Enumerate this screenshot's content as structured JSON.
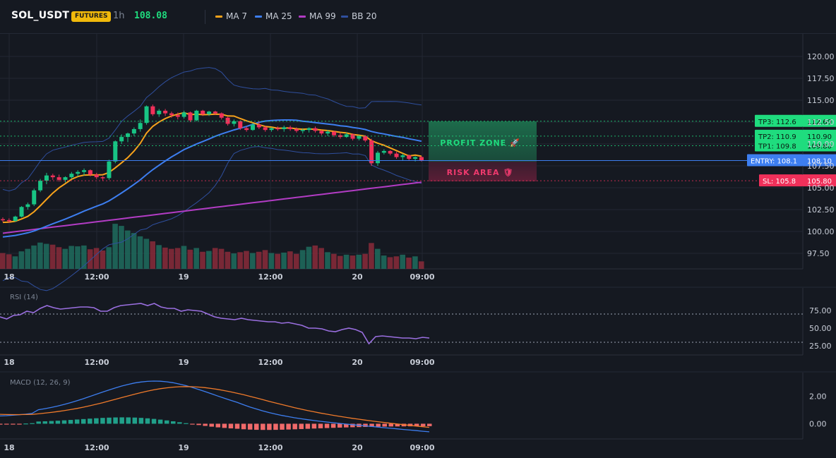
{
  "header": {
    "symbol": "SOL_USDT",
    "badge": "FUTURES",
    "timeframe": "1h",
    "price": "108.08",
    "legend": [
      {
        "label": "MA 7",
        "color": "#f7a21b"
      },
      {
        "label": "MA 25",
        "color": "#3d7ef0"
      },
      {
        "label": "MA 99",
        "color": "#b23cc4"
      },
      {
        "label": "BB 20",
        "color": "#2f4f9e"
      }
    ]
  },
  "colors": {
    "up": "#18c484",
    "down": "#f0305a",
    "bg": "#151921",
    "grid": "#222733",
    "ma7": "#f7a21b",
    "ma25": "#3d7ef0",
    "ma99": "#b23cc4",
    "bb": "#2f4f9e",
    "rsi": "#9a6fe0",
    "macd": "#3d7ef0",
    "signal": "#f07a2a",
    "hist_up": "#21a08a",
    "hist_down": "#f06a6a",
    "tp": "#1fdc7e",
    "entry": "#3d7ef0",
    "sl": "#f0305a"
  },
  "time_labels": [
    "18",
    "12:00",
    "19",
    "12:00",
    "20",
    "09:00"
  ],
  "price_axis": [
    "120.00",
    "117.50",
    "115.00",
    "112.50",
    "110.00",
    "107.50",
    "105.00",
    "102.50",
    "100.00",
    "97.50"
  ],
  "levels": {
    "tp3": {
      "label": "TP3: 112.6",
      "price": "112.60",
      "value": 112.6
    },
    "tp2": {
      "label": "TP2: 110.9",
      "price": "110.90",
      "value": 110.9
    },
    "tp1": {
      "label": "TP1: 109.8",
      "price": "109.80",
      "value": 109.8
    },
    "entry": {
      "label": "ENTRY: 108.1",
      "price": "108.10",
      "value": 108.1
    },
    "sl": {
      "label": "SL: 105.8",
      "price": "105.80",
      "value": 105.8
    }
  },
  "zones": {
    "profit": "PROFIT ZONE 🚀",
    "risk": "RISK AREA 🛡"
  },
  "rsi": {
    "title": "RSI (14)",
    "axis": [
      "75.00",
      "50.00",
      "25.00"
    ],
    "upper": 70,
    "lower": 30,
    "values": [
      66,
      63,
      68,
      69,
      74,
      72,
      78,
      82,
      79,
      77,
      78,
      79,
      80,
      80,
      79,
      74,
      74,
      79,
      82,
      83,
      84,
      85,
      82,
      85,
      80,
      78,
      78,
      74,
      76,
      75,
      74,
      70,
      66,
      64,
      63,
      62,
      64,
      62,
      61,
      60,
      59,
      59,
      57,
      58,
      56,
      54,
      50,
      50,
      49,
      46,
      45,
      48,
      50,
      48,
      44,
      28,
      38,
      39,
      38,
      37,
      36,
      36,
      35,
      37,
      36
    ]
  },
  "macd": {
    "title": "MACD (12, 26, 9)",
    "axis": [
      "2.00",
      "0.00"
    ]
  },
  "chart_data": {
    "type": "candlestick",
    "candles": [
      [
        101.4,
        101.6,
        101.1,
        101.3
      ],
      [
        101.3,
        101.5,
        101.0,
        101.2
      ],
      [
        101.2,
        101.8,
        101.1,
        101.7
      ],
      [
        101.7,
        102.9,
        101.6,
        102.8
      ],
      [
        102.8,
        103.3,
        102.5,
        103.1
      ],
      [
        103.1,
        104.9,
        102.9,
        104.7
      ],
      [
        104.7,
        106.0,
        104.5,
        105.8
      ],
      [
        105.8,
        106.7,
        105.4,
        106.4
      ],
      [
        106.4,
        106.6,
        105.9,
        106.2
      ],
      [
        106.2,
        106.5,
        105.7,
        105.9
      ],
      [
        105.9,
        106.3,
        105.6,
        106.2
      ],
      [
        106.2,
        106.8,
        106.0,
        106.6
      ],
      [
        106.6,
        107.0,
        106.3,
        106.8
      ],
      [
        106.8,
        107.2,
        106.4,
        107.0
      ],
      [
        107.0,
        107.1,
        106.3,
        106.5
      ],
      [
        106.5,
        106.7,
        106.0,
        106.2
      ],
      [
        106.2,
        106.3,
        105.8,
        106.1
      ],
      [
        106.1,
        108.2,
        105.9,
        108.0
      ],
      [
        108.0,
        110.4,
        107.8,
        110.3
      ],
      [
        110.3,
        111.1,
        110.0,
        110.8
      ],
      [
        110.8,
        111.3,
        110.2,
        111.2
      ],
      [
        111.2,
        111.9,
        110.9,
        111.7
      ],
      [
        111.7,
        112.8,
        111.4,
        112.4
      ],
      [
        112.4,
        114.4,
        112.2,
        114.3
      ],
      [
        114.3,
        114.5,
        113.2,
        113.4
      ],
      [
        113.4,
        114.0,
        113.1,
        113.8
      ],
      [
        113.8,
        114.0,
        113.2,
        113.5
      ],
      [
        113.5,
        113.7,
        113.0,
        113.3
      ],
      [
        113.3,
        113.6,
        112.8,
        113.1
      ],
      [
        113.1,
        113.8,
        112.9,
        113.6
      ],
      [
        113.6,
        113.7,
        112.5,
        112.7
      ],
      [
        112.7,
        113.9,
        112.6,
        113.8
      ],
      [
        113.8,
        113.9,
        113.2,
        113.4
      ],
      [
        113.4,
        113.8,
        113.2,
        113.7
      ],
      [
        113.7,
        113.8,
        113.3,
        113.5
      ],
      [
        113.5,
        113.6,
        112.8,
        113.0
      ],
      [
        113.0,
        113.1,
        112.1,
        112.3
      ],
      [
        112.3,
        112.8,
        112.0,
        112.6
      ],
      [
        112.6,
        112.7,
        111.6,
        111.8
      ],
      [
        111.8,
        112.0,
        111.4,
        111.6
      ],
      [
        111.6,
        112.4,
        111.5,
        112.2
      ],
      [
        112.2,
        112.6,
        111.7,
        111.9
      ],
      [
        111.9,
        112.1,
        111.4,
        111.6
      ],
      [
        111.6,
        111.9,
        111.4,
        111.8
      ],
      [
        111.8,
        112.0,
        111.5,
        111.7
      ],
      [
        111.7,
        112.1,
        111.4,
        111.9
      ],
      [
        111.9,
        112.1,
        111.5,
        111.7
      ],
      [
        111.7,
        111.9,
        111.3,
        111.5
      ],
      [
        111.5,
        111.8,
        111.2,
        111.6
      ],
      [
        111.6,
        111.9,
        111.3,
        111.8
      ],
      [
        111.8,
        112.0,
        111.3,
        111.5
      ],
      [
        111.5,
        111.6,
        111.0,
        111.2
      ],
      [
        111.2,
        111.6,
        110.9,
        111.4
      ],
      [
        111.4,
        111.5,
        110.8,
        111.0
      ],
      [
        111.0,
        111.3,
        110.6,
        110.8
      ],
      [
        110.8,
        111.3,
        110.7,
        111.1
      ],
      [
        111.1,
        111.2,
        110.4,
        110.6
      ],
      [
        110.6,
        111.0,
        110.4,
        110.9
      ],
      [
        110.9,
        111.0,
        110.2,
        110.4
      ],
      [
        110.4,
        110.6,
        107.5,
        107.8
      ],
      [
        107.8,
        109.2,
        107.5,
        109.0
      ],
      [
        109.0,
        109.4,
        108.8,
        109.2
      ],
      [
        109.2,
        109.3,
        108.7,
        108.9
      ],
      [
        108.9,
        109.1,
        108.3,
        108.5
      ],
      [
        108.5,
        108.9,
        108.1,
        108.7
      ],
      [
        108.7,
        108.8,
        108.1,
        108.3
      ],
      [
        108.3,
        108.6,
        108.0,
        108.5
      ],
      [
        108.5,
        108.6,
        108.0,
        108.1
      ]
    ],
    "volume": [
      38,
      35,
      30,
      42,
      48,
      56,
      63,
      60,
      58,
      52,
      48,
      55,
      54,
      56,
      47,
      50,
      44,
      52,
      108,
      103,
      92,
      86,
      78,
      72,
      66,
      57,
      51,
      48,
      50,
      55,
      46,
      50,
      41,
      43,
      50,
      48,
      41,
      37,
      40,
      43,
      38,
      41,
      45,
      38,
      36,
      39,
      42,
      36,
      45,
      53,
      56,
      50,
      40,
      36,
      31,
      34,
      32,
      34,
      36,
      62,
      48,
      32,
      28,
      30,
      34,
      27,
      30,
      18
    ]
  }
}
